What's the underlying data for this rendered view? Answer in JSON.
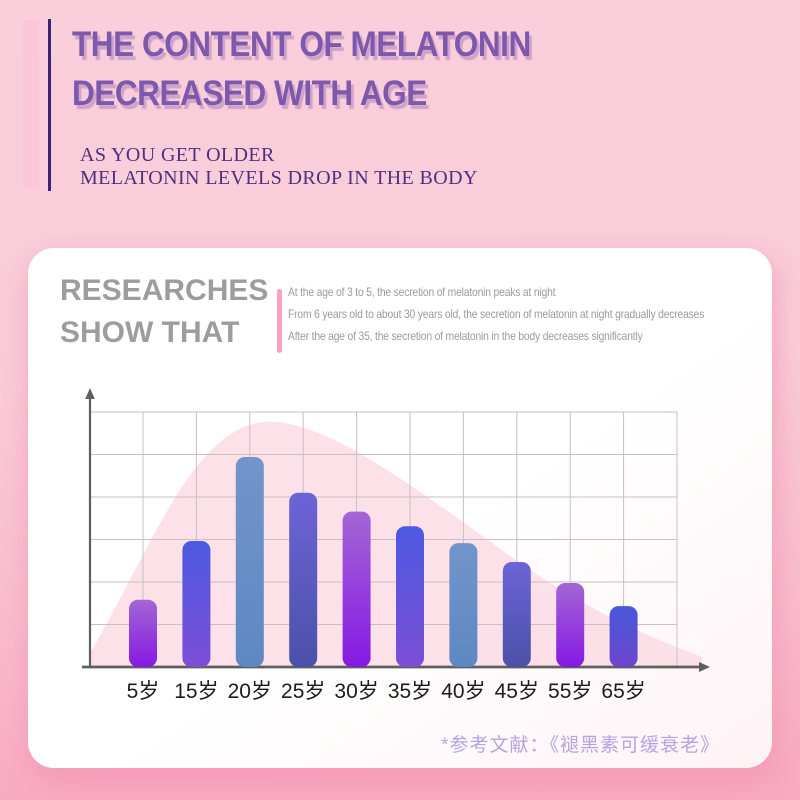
{
  "page": {
    "header": {
      "title_line1": "THE CONTENT OF MELATONIN",
      "title_line2": "DECREASED WITH AGE",
      "subtitle_line1": "AS YOU GET OLDER",
      "subtitle_line2": "MELATONIN LEVELS DROP IN THE BODY"
    },
    "card": {
      "heading_line1": "RESEARCHES",
      "heading_line2": "SHOW THAT",
      "bullets": [
        "At the age of 3 to 5, the secretion of melatonin peaks at night",
        "From 6 years old to about 30 years old, the secretion of melatonin at night gradually decreases",
        "After the age of 35, the secretion of melatonin in the body decreases significantly"
      ],
      "footnote": "*参考文献：《褪黑素可缓衰老》"
    }
  },
  "colors": {
    "background_top": "#f9cfdb",
    "background_bottom": "#f8a9c1",
    "accent_bar_pink": "#fac6d8",
    "accent_line_purple": "#3c2474",
    "title_purple": "#7e58ad",
    "title_shadow_pink": "#cfa3c8",
    "subtitle_purple": "#50307d",
    "heading_gray": "#9d9d9d",
    "divider_pink": "#f8a2bb",
    "footnote_lavender": "#b3a5e2"
  },
  "chart_data": {
    "type": "bar",
    "title": "",
    "xlabel": "",
    "ylabel": "",
    "categories": [
      "5岁",
      "15岁",
      "20岁",
      "25岁",
      "30岁",
      "35岁",
      "40岁",
      "45岁",
      "55岁",
      "65岁"
    ],
    "values": [
      32,
      60,
      100,
      83,
      74,
      67,
      59,
      50,
      40,
      29
    ],
    "ylim": [
      0,
      100
    ],
    "grid": true,
    "legend_position": "none",
    "axis_color": "#5f5f5f",
    "grid_color": "#c9bfc5",
    "label_color": "#1c1c1c",
    "label_font_px": 21,
    "background_area_color": "#fbdae4",
    "bar_colors": [
      {
        "top": "#a466d4",
        "bottom": "#8519e4"
      },
      {
        "top": "#4c59e0",
        "bottom": "#7b4fd6"
      },
      {
        "top": "#7295ca",
        "bottom": "#5e88c2"
      },
      {
        "top": "#6b64d6",
        "bottom": "#4b51a9"
      },
      {
        "top": "#a466d4",
        "bottom": "#8519e4"
      },
      {
        "top": "#4c59e0",
        "bottom": "#7b4fd6"
      },
      {
        "top": "#7295ca",
        "bottom": "#5e88c2"
      },
      {
        "top": "#6b64d6",
        "bottom": "#4b51a9"
      },
      {
        "top": "#a466d4",
        "bottom": "#8519e4"
      },
      {
        "top": "#4a58da",
        "bottom": "#6b46cc"
      }
    ]
  }
}
